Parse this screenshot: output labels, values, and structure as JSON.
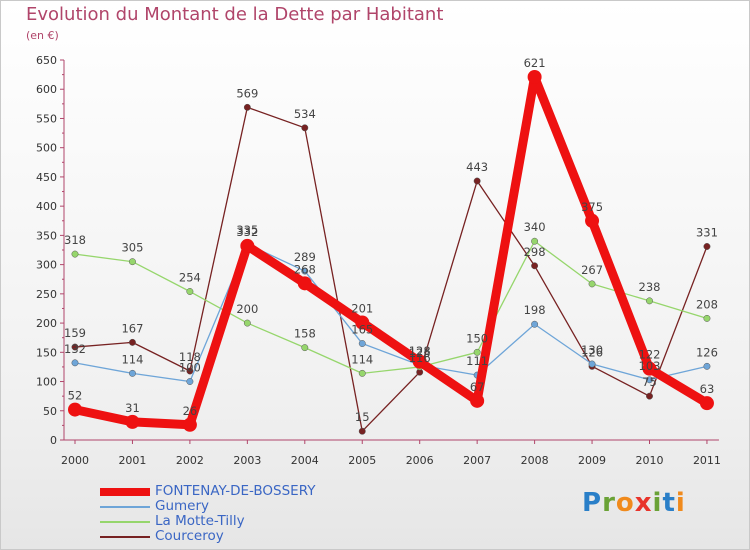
{
  "header": {
    "title": "Evolution du Montant de la Dette par Habitant",
    "unit": "(en €)"
  },
  "logo": {
    "text": "Proxiti",
    "letters": [
      {
        "ch": "P",
        "color": "#2a7fc8"
      },
      {
        "ch": "r",
        "color": "#6aa236"
      },
      {
        "ch": "o",
        "color": "#f08a1c"
      },
      {
        "ch": "x",
        "color": "#e8342b"
      },
      {
        "ch": "i",
        "color": "#6aa236"
      },
      {
        "ch": "t",
        "color": "#2a7fc8"
      },
      {
        "ch": "i",
        "color": "#f08a1c"
      }
    ]
  },
  "chart_data": {
    "type": "line",
    "title": "Evolution du Montant de la Dette par Habitant",
    "subtitle": "(en €)",
    "xlabel": "",
    "ylabel": "",
    "x": [
      "2000",
      "2001",
      "2002",
      "2003",
      "2004",
      "2005",
      "2006",
      "2007",
      "2008",
      "2009",
      "2010",
      "2011"
    ],
    "ylim": [
      0,
      650
    ],
    "yticks": [
      0,
      50,
      100,
      150,
      200,
      250,
      300,
      350,
      400,
      450,
      500,
      550,
      600,
      650
    ],
    "grid": false,
    "legend": "bottom-left",
    "series": [
      {
        "name": "FONTENAY-DE-BOSSERY",
        "color": "#ee1111",
        "width": "thick",
        "values": [
          52,
          31,
          26,
          332,
          268,
          201,
          134,
          67,
          621,
          375,
          122,
          63
        ],
        "labels": [
          "52",
          "31",
          "26",
          "332",
          "268",
          "201",
          "",
          "67",
          "621",
          "375",
          "122",
          "63"
        ]
      },
      {
        "name": "Gumery",
        "color": "#6ea5d8",
        "width": "thin",
        "values": [
          132,
          114,
          100,
          335,
          289,
          165,
          128,
          111,
          198,
          130,
          103,
          126
        ],
        "labels": [
          "132",
          "114",
          "100",
          "335",
          "289",
          "165",
          "128",
          "111",
          "198",
          "130",
          "103",
          "126"
        ]
      },
      {
        "name": "La Motte-Tilly",
        "color": "#96d66c",
        "width": "thin",
        "values": [
          318,
          305,
          254,
          200,
          158,
          114,
          125,
          150,
          340,
          267,
          238,
          208
        ],
        "labels": [
          "318",
          "305",
          "254",
          "200",
          "158",
          "114",
          "125",
          "150",
          "340",
          "267",
          "238",
          "208"
        ]
      },
      {
        "name": "Courceroy",
        "color": "#772222",
        "width": "thin",
        "values": [
          159,
          167,
          118,
          569,
          534,
          15,
          116,
          443,
          298,
          126,
          75,
          331
        ],
        "labels": [
          "159",
          "167",
          "118",
          "569",
          "534",
          "15",
          "116",
          "443",
          "298",
          "126",
          "75",
          "331"
        ]
      }
    ]
  }
}
